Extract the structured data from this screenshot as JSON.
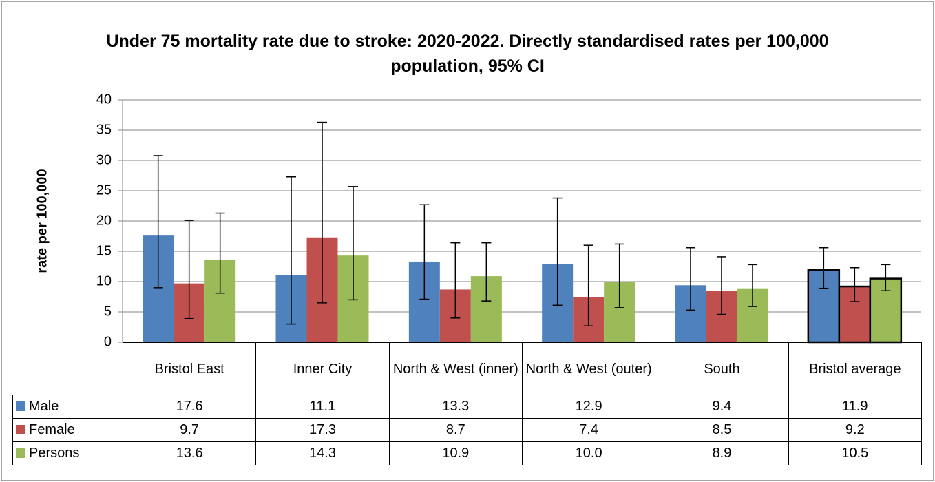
{
  "chart_data": {
    "type": "bar",
    "title": "Under 75 mortality rate due to stroke: 2020-2022. Directly standardised rates per 100,000 population, 95% CI",
    "y_label": "rate per 100,000",
    "categories": [
      "Bristol East",
      "Inner City",
      "North & West (inner)",
      "North & West (outer)",
      "South",
      "Bristol average"
    ],
    "series": [
      {
        "name": "Male",
        "color": "#4f81bd",
        "values": [
          17.6,
          11.1,
          13.3,
          12.9,
          9.4,
          11.9
        ],
        "value_labels": [
          "17.6",
          "11.1",
          "13.3",
          "12.9",
          "9.4",
          "11.9"
        ],
        "ci_lower": [
          9.0,
          3.0,
          7.1,
          6.1,
          5.3,
          8.9
        ],
        "ci_upper": [
          30.8,
          27.3,
          22.7,
          23.8,
          15.6,
          15.6
        ]
      },
      {
        "name": "Female",
        "color": "#c0504d",
        "values": [
          9.7,
          17.3,
          8.7,
          7.4,
          8.5,
          9.2
        ],
        "value_labels": [
          "9.7",
          "17.3",
          "8.7",
          "7.4",
          "8.5",
          "9.2"
        ],
        "ci_lower": [
          3.9,
          6.5,
          4.0,
          2.7,
          4.6,
          6.7
        ],
        "ci_upper": [
          20.1,
          36.3,
          16.4,
          16.0,
          14.1,
          12.3
        ]
      },
      {
        "name": "Persons",
        "color": "#9bbb59",
        "values": [
          13.6,
          14.3,
          10.9,
          10.0,
          8.9,
          10.5
        ],
        "value_labels": [
          "13.6",
          "14.3",
          "10.9",
          "10.0",
          "8.9",
          "10.5"
        ],
        "ci_lower": [
          8.1,
          7.0,
          6.8,
          5.7,
          5.9,
          8.5
        ],
        "ci_upper": [
          21.3,
          25.7,
          16.4,
          16.2,
          12.8,
          12.8
        ]
      }
    ],
    "highlight": "Bristol average",
    "ylim": [
      0,
      40
    ],
    "yticks": [
      0,
      5,
      10,
      15,
      20,
      25,
      30,
      35,
      40
    ],
    "grid": true
  }
}
